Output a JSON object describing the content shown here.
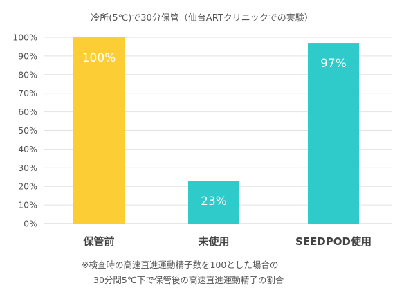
{
  "chart_data": {
    "type": "bar",
    "title": "冷所(5℃)で30分保管（仙台ARTクリニックでの実験）",
    "categories": [
      "保管前",
      "未使用",
      "SEEDPOD使用"
    ],
    "values": [
      100,
      23,
      97
    ],
    "data_labels": [
      "100%",
      "23%",
      "97%"
    ],
    "colors": [
      "#FCCD34",
      "#2ECBCA",
      "#2ECBCA"
    ],
    "ylim": [
      0,
      100
    ],
    "yticks": [
      "0%",
      "10%",
      "20%",
      "30%",
      "40%",
      "50%",
      "60%",
      "70%",
      "80%",
      "90%",
      "100%"
    ],
    "grid": true,
    "xlabel": "",
    "ylabel": ""
  },
  "footnote": {
    "line1": "※検査時の高速直進運動精子数を100とした場合の",
    "line2": "30分間5℃下で保管後の高速直進運動精子の割合"
  }
}
